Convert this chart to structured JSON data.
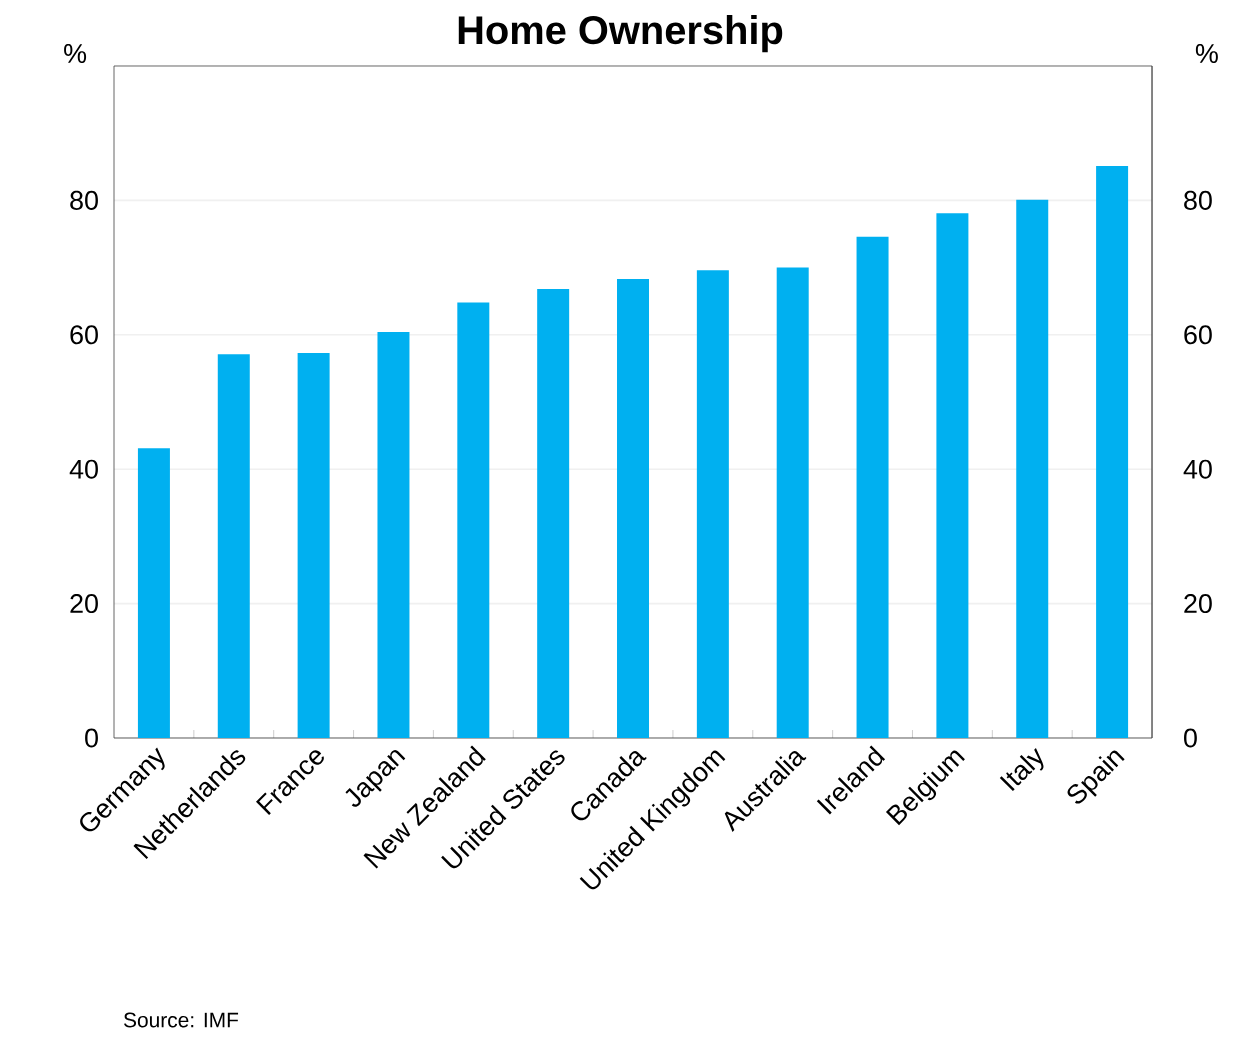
{
  "chart_data": {
    "type": "bar",
    "title": "Home Ownership",
    "categories": [
      "Germany",
      "Netherlands",
      "France",
      "Japan",
      "New Zealand",
      "United States",
      "Canada",
      "United Kingdom",
      "Australia",
      "Ireland",
      "Belgium",
      "Italy",
      "Spain"
    ],
    "values": [
      43.1,
      57.1,
      57.3,
      60.4,
      64.8,
      66.8,
      68.3,
      69.6,
      70.0,
      74.6,
      78.1,
      80.1,
      85.1
    ],
    "color": "#00b0f0",
    "ylabel": "%",
    "y2label": "%",
    "ylim": [
      0,
      100
    ],
    "yticks": [
      0,
      20,
      40,
      60,
      80
    ],
    "y2lim": [
      0,
      100
    ],
    "y2ticks": [
      0,
      20,
      40,
      60,
      80
    ],
    "grid": "y",
    "annotations": [
      "Source: IMF"
    ]
  }
}
